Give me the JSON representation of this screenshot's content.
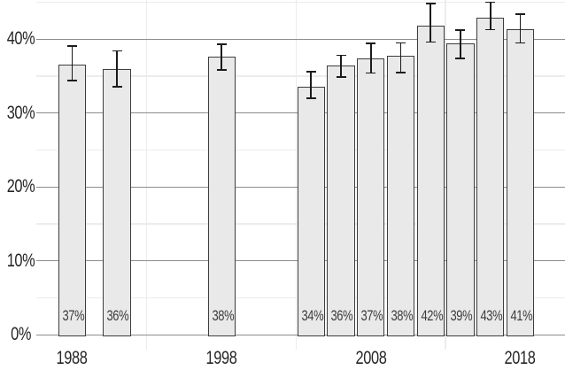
{
  "colors": {
    "background": "#ffffff",
    "bar_fill": "#e9e9e9",
    "bar_border": "#3d3d3d",
    "error_bar": "#1b1b1b",
    "grid_major": "#8d8d8d",
    "grid_minor": "#ececec",
    "axis_text": "#262626",
    "bar_label_text": "#3b3b3b"
  },
  "chart_data": {
    "type": "bar",
    "title": "",
    "xlabel": "",
    "ylabel": "",
    "has_error_bars": true,
    "legend": "none",
    "bar_width_years": 1.85,
    "y_axis": {
      "min": -2.0,
      "max": 45.3,
      "ticks": [
        {
          "value": 0,
          "label": "0%"
        },
        {
          "value": 10,
          "label": "10%"
        },
        {
          "value": 20,
          "label": "20%"
        },
        {
          "value": 30,
          "label": "30%"
        },
        {
          "value": 40,
          "label": "40%"
        }
      ],
      "minor_gridlines": [
        5,
        15,
        25,
        35,
        45
      ]
    },
    "x_axis": {
      "min": 1985.6,
      "max": 2021.0,
      "ticks": [
        {
          "year": 1988,
          "label": "1988"
        },
        {
          "year": 1998,
          "label": "1998"
        },
        {
          "year": 2008,
          "label": "2008"
        },
        {
          "year": 2018,
          "label": "2018"
        }
      ],
      "minor_gridline_years": [
        1993,
        2003,
        2013
      ]
    },
    "bars": [
      {
        "year": 1988,
        "value": 36.6,
        "label": "37%",
        "err_low": 34.3,
        "err_high": 39.2
      },
      {
        "year": 1991,
        "value": 35.9,
        "label": "36%",
        "err_low": 33.5,
        "err_high": 38.5
      },
      {
        "year": 1998,
        "value": 37.6,
        "label": "38%",
        "err_low": 35.7,
        "err_high": 39.4
      },
      {
        "year": 2004,
        "value": 33.6,
        "label": "34%",
        "err_low": 31.9,
        "err_high": 35.7
      },
      {
        "year": 2006,
        "value": 36.4,
        "label": "36%",
        "err_low": 34.8,
        "err_high": 37.9
      },
      {
        "year": 2008,
        "value": 37.4,
        "label": "37%",
        "err_low": 35.3,
        "err_high": 39.5
      },
      {
        "year": 2010,
        "value": 37.7,
        "label": "38%",
        "err_low": 35.4,
        "err_high": 39.6
      },
      {
        "year": 2012,
        "value": 41.8,
        "label": "42%",
        "err_low": 39.5,
        "err_high": 44.9
      },
      {
        "year": 2014,
        "value": 39.4,
        "label": "39%",
        "err_low": 37.3,
        "err_high": 41.3
      },
      {
        "year": 2016,
        "value": 42.9,
        "label": "43%",
        "err_low": 41.2,
        "err_high": 45.1
      },
      {
        "year": 2018,
        "value": 41.4,
        "label": "41%",
        "err_low": 39.4,
        "err_high": 43.5
      }
    ]
  }
}
